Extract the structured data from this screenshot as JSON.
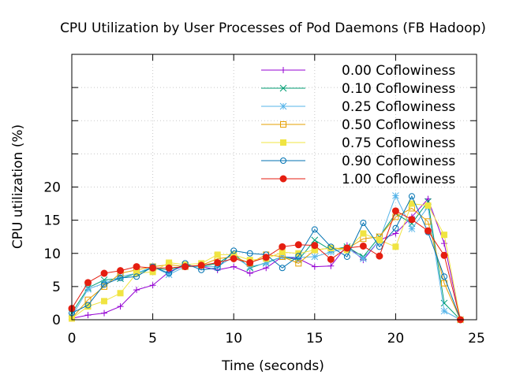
{
  "chart_data": {
    "type": "line",
    "title": "CPU Utilization by User Processes of Pod Daemons (FB Hadoop)",
    "xlabel": "Time (seconds)",
    "ylabel": "CPU utilization (%)",
    "xlim": [
      0,
      25
    ],
    "ylim": [
      0,
      40
    ],
    "xticks": [
      0,
      5,
      10,
      15,
      20,
      25
    ],
    "yticks": [
      0,
      5,
      10,
      15,
      20
    ],
    "grid": true,
    "legend_position": "top-right",
    "x": [
      0,
      1,
      2,
      3,
      4,
      5,
      6,
      7,
      8,
      9,
      10,
      11,
      12,
      13,
      14,
      15,
      16,
      17,
      18,
      19,
      20,
      21,
      22,
      23,
      24
    ],
    "series": [
      {
        "name": "0.00 Coflowiness",
        "color": "#9400d3",
        "marker": "plus",
        "values": [
          0.2,
          0.7,
          1.0,
          2.0,
          4.5,
          5.2,
          7.2,
          8.2,
          8.0,
          7.5,
          8.0,
          7.0,
          7.8,
          9.5,
          9.2,
          8.0,
          8.1,
          11.2,
          9.0,
          12.0,
          13.0,
          15.5,
          18.2,
          11.5,
          0.0
        ]
      },
      {
        "name": "0.10 Coflowiness",
        "color": "#009e73",
        "marker": "cross",
        "values": [
          1.0,
          4.8,
          6.0,
          6.2,
          7.0,
          7.8,
          7.5,
          8.2,
          8.0,
          8.5,
          10.0,
          7.8,
          8.6,
          9.5,
          9.0,
          12.0,
          10.5,
          11.0,
          9.5,
          12.5,
          16.0,
          14.5,
          17.8,
          2.5,
          0.0
        ]
      },
      {
        "name": "0.25 Coflowiness",
        "color": "#56b4e9",
        "marker": "star",
        "values": [
          0.5,
          4.6,
          5.5,
          6.5,
          7.0,
          8.0,
          6.8,
          8.0,
          8.0,
          8.0,
          9.5,
          8.0,
          8.5,
          9.5,
          9.4,
          9.5,
          10.2,
          10.8,
          9.2,
          12.0,
          18.7,
          13.7,
          17.0,
          1.3,
          0.0
        ]
      },
      {
        "name": "0.50 Coflowiness",
        "color": "#e69f00",
        "marker": "box",
        "values": [
          0.2,
          3.0,
          5.0,
          7.0,
          7.5,
          8.0,
          8.3,
          8.0,
          8.2,
          9.2,
          9.5,
          8.5,
          9.8,
          9.5,
          8.5,
          10.5,
          10.8,
          10.7,
          12.2,
          12.5,
          15.5,
          16.8,
          14.8,
          5.5,
          0.0
        ]
      },
      {
        "name": "0.75 Coflowiness",
        "color": "#f0e442",
        "marker": "boxfilled",
        "values": [
          0.2,
          2.0,
          2.8,
          4.0,
          7.0,
          7.2,
          8.6,
          8.3,
          8.5,
          9.8,
          9.8,
          9.0,
          9.2,
          10.2,
          10.0,
          10.5,
          10.8,
          10.5,
          13.0,
          12.0,
          11.0,
          17.5,
          17.2,
          12.8,
          0.0
        ]
      },
      {
        "name": "0.90 Coflowiness",
        "color": "#0072b2",
        "marker": "circle",
        "values": [
          1.0,
          2.2,
          5.3,
          6.3,
          6.5,
          8.0,
          7.0,
          8.5,
          7.5,
          7.8,
          10.4,
          10.0,
          9.8,
          7.8,
          9.6,
          13.6,
          11.0,
          9.5,
          14.6,
          11.0,
          13.8,
          18.6,
          13.2,
          6.5,
          0.0
        ]
      },
      {
        "name": "1.00 Coflowiness",
        "color": "#e51e10",
        "marker": "circlefilled",
        "values": [
          1.7,
          5.6,
          7.0,
          7.4,
          8.0,
          7.8,
          7.8,
          8.0,
          8.2,
          8.6,
          9.2,
          8.6,
          9.4,
          11.0,
          11.3,
          11.2,
          9.1,
          10.8,
          11.1,
          9.6,
          16.4,
          15.1,
          13.4,
          9.7,
          0.0
        ]
      }
    ]
  }
}
